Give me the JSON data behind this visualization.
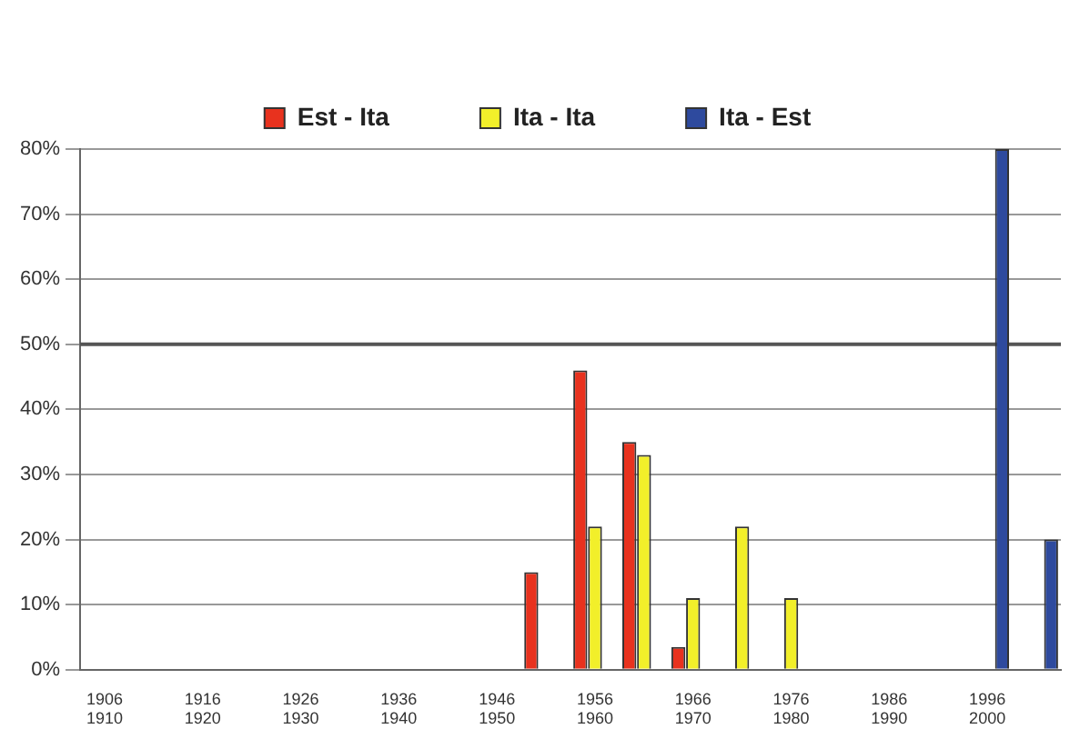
{
  "chart_data": {
    "type": "bar",
    "categories": [
      "1906\n1910",
      null,
      "1916\n1920",
      null,
      "1926\n1930",
      null,
      "1936\n1940",
      null,
      "1946\n1950",
      null,
      "1956\n1960",
      null,
      "1966\n1970",
      null,
      "1976\n1980",
      null,
      "1986\n1990",
      null,
      "1996\n2000",
      null
    ],
    "series": [
      {
        "name": "Est - Ita",
        "color": "#e8321e",
        "values": [
          null,
          null,
          null,
          null,
          null,
          null,
          null,
          null,
          null,
          15,
          46,
          35,
          3.5,
          null,
          null,
          null,
          null,
          null,
          null,
          null
        ]
      },
      {
        "name": "Ita - Ita",
        "color": "#f2ef2a",
        "values": [
          null,
          null,
          null,
          null,
          null,
          null,
          null,
          null,
          null,
          null,
          22,
          33,
          11,
          22,
          11,
          null,
          null,
          null,
          null,
          null
        ]
      },
      {
        "name": "Ita - Est",
        "color": "#2e4a9e",
        "values": [
          null,
          null,
          null,
          null,
          null,
          null,
          null,
          null,
          null,
          null,
          null,
          null,
          null,
          null,
          null,
          null,
          null,
          null,
          80,
          20
        ]
      }
    ],
    "ylim": [
      0,
      80
    ],
    "yticks": [
      {
        "value": 0,
        "label": "0%"
      },
      {
        "value": 10,
        "label": "10%"
      },
      {
        "value": 20,
        "label": "20%"
      },
      {
        "value": 30,
        "label": "30%"
      },
      {
        "value": 40,
        "label": "40%"
      },
      {
        "value": 50,
        "label": "50%"
      },
      {
        "value": 60,
        "label": "60%"
      },
      {
        "value": 70,
        "label": "70%"
      },
      {
        "value": 80,
        "label": "80%"
      }
    ],
    "ref_lines": [
      {
        "axis": "y",
        "value": 50,
        "color": "#555555"
      }
    ],
    "grid": "y",
    "legend": "top"
  }
}
